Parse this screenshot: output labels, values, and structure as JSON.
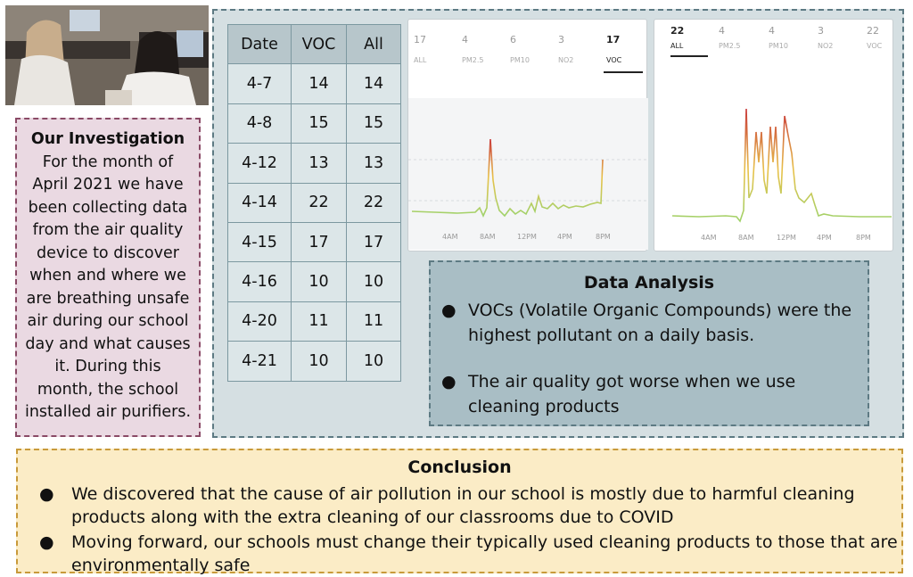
{
  "investigation": {
    "title": "Our Investigation",
    "lines": [
      "For the month of",
      "April 2021 we have",
      "been collecting  data",
      "from the air quality",
      "device to discover",
      "when and where we",
      "are breathing unsafe",
      "air during our school",
      "day and what causes",
      "it.  During this",
      "month, the school",
      "installed air purifiers."
    ]
  },
  "table": {
    "headers": [
      "Date",
      "VOC",
      "All"
    ],
    "rows": [
      [
        "4-7",
        "14",
        "14"
      ],
      [
        "4-8",
        "15",
        "15"
      ],
      [
        "4-12",
        "13",
        "13"
      ],
      [
        "4-14",
        "22",
        "22"
      ],
      [
        "4-15",
        "17",
        "17"
      ],
      [
        "4-16",
        "10",
        "10"
      ],
      [
        "4-20",
        "11",
        "11"
      ],
      [
        "4-21",
        "10",
        "10"
      ]
    ]
  },
  "chart_data": [
    {
      "type": "line",
      "tabs": [
        {
          "value": "17",
          "label": "ALL"
        },
        {
          "value": "4",
          "label": "PM2.5"
        },
        {
          "value": "6",
          "label": "PM10"
        },
        {
          "value": "3",
          "label": "NO2"
        },
        {
          "value": "17",
          "label": "VOC"
        }
      ],
      "selected_tab": 4,
      "x_ticks": [
        "4AM",
        "8AM",
        "12PM",
        "4PM",
        "8PM"
      ],
      "colors": {
        "low": "#9fd26a",
        "mid": "#e8c24a",
        "high": "#c93a3a"
      }
    },
    {
      "type": "line",
      "tabs": [
        {
          "value": "22",
          "label": "ALL"
        },
        {
          "value": "4",
          "label": "PM2.5"
        },
        {
          "value": "4",
          "label": "PM10"
        },
        {
          "value": "3",
          "label": "NO2"
        },
        {
          "value": "22",
          "label": "VOC"
        }
      ],
      "selected_tab": 0,
      "x_ticks": [
        "4AM",
        "8AM",
        "12PM",
        "4PM",
        "8PM"
      ],
      "colors": {
        "low": "#9fd26a",
        "mid": "#e8c24a",
        "high": "#c93a3a"
      }
    }
  ],
  "analysis": {
    "title": "Data Analysis",
    "bullets": [
      [
        "VOCs (Volatile Organic Compounds) were the",
        "highest pollutant on a daily basis."
      ],
      [
        "The air quality got worse when we use",
        "cleaning products"
      ]
    ]
  },
  "conclusion": {
    "title": "Conclusion",
    "bullets": [
      [
        "We discovered that the cause of air pollution in our school is mostly due to harmful cleaning",
        "products along with the extra cleaning of our classrooms due to COVID"
      ],
      [
        "Moving forward, our schools must change their typically used cleaning products to those that are",
        "environmentally safe"
      ]
    ]
  }
}
